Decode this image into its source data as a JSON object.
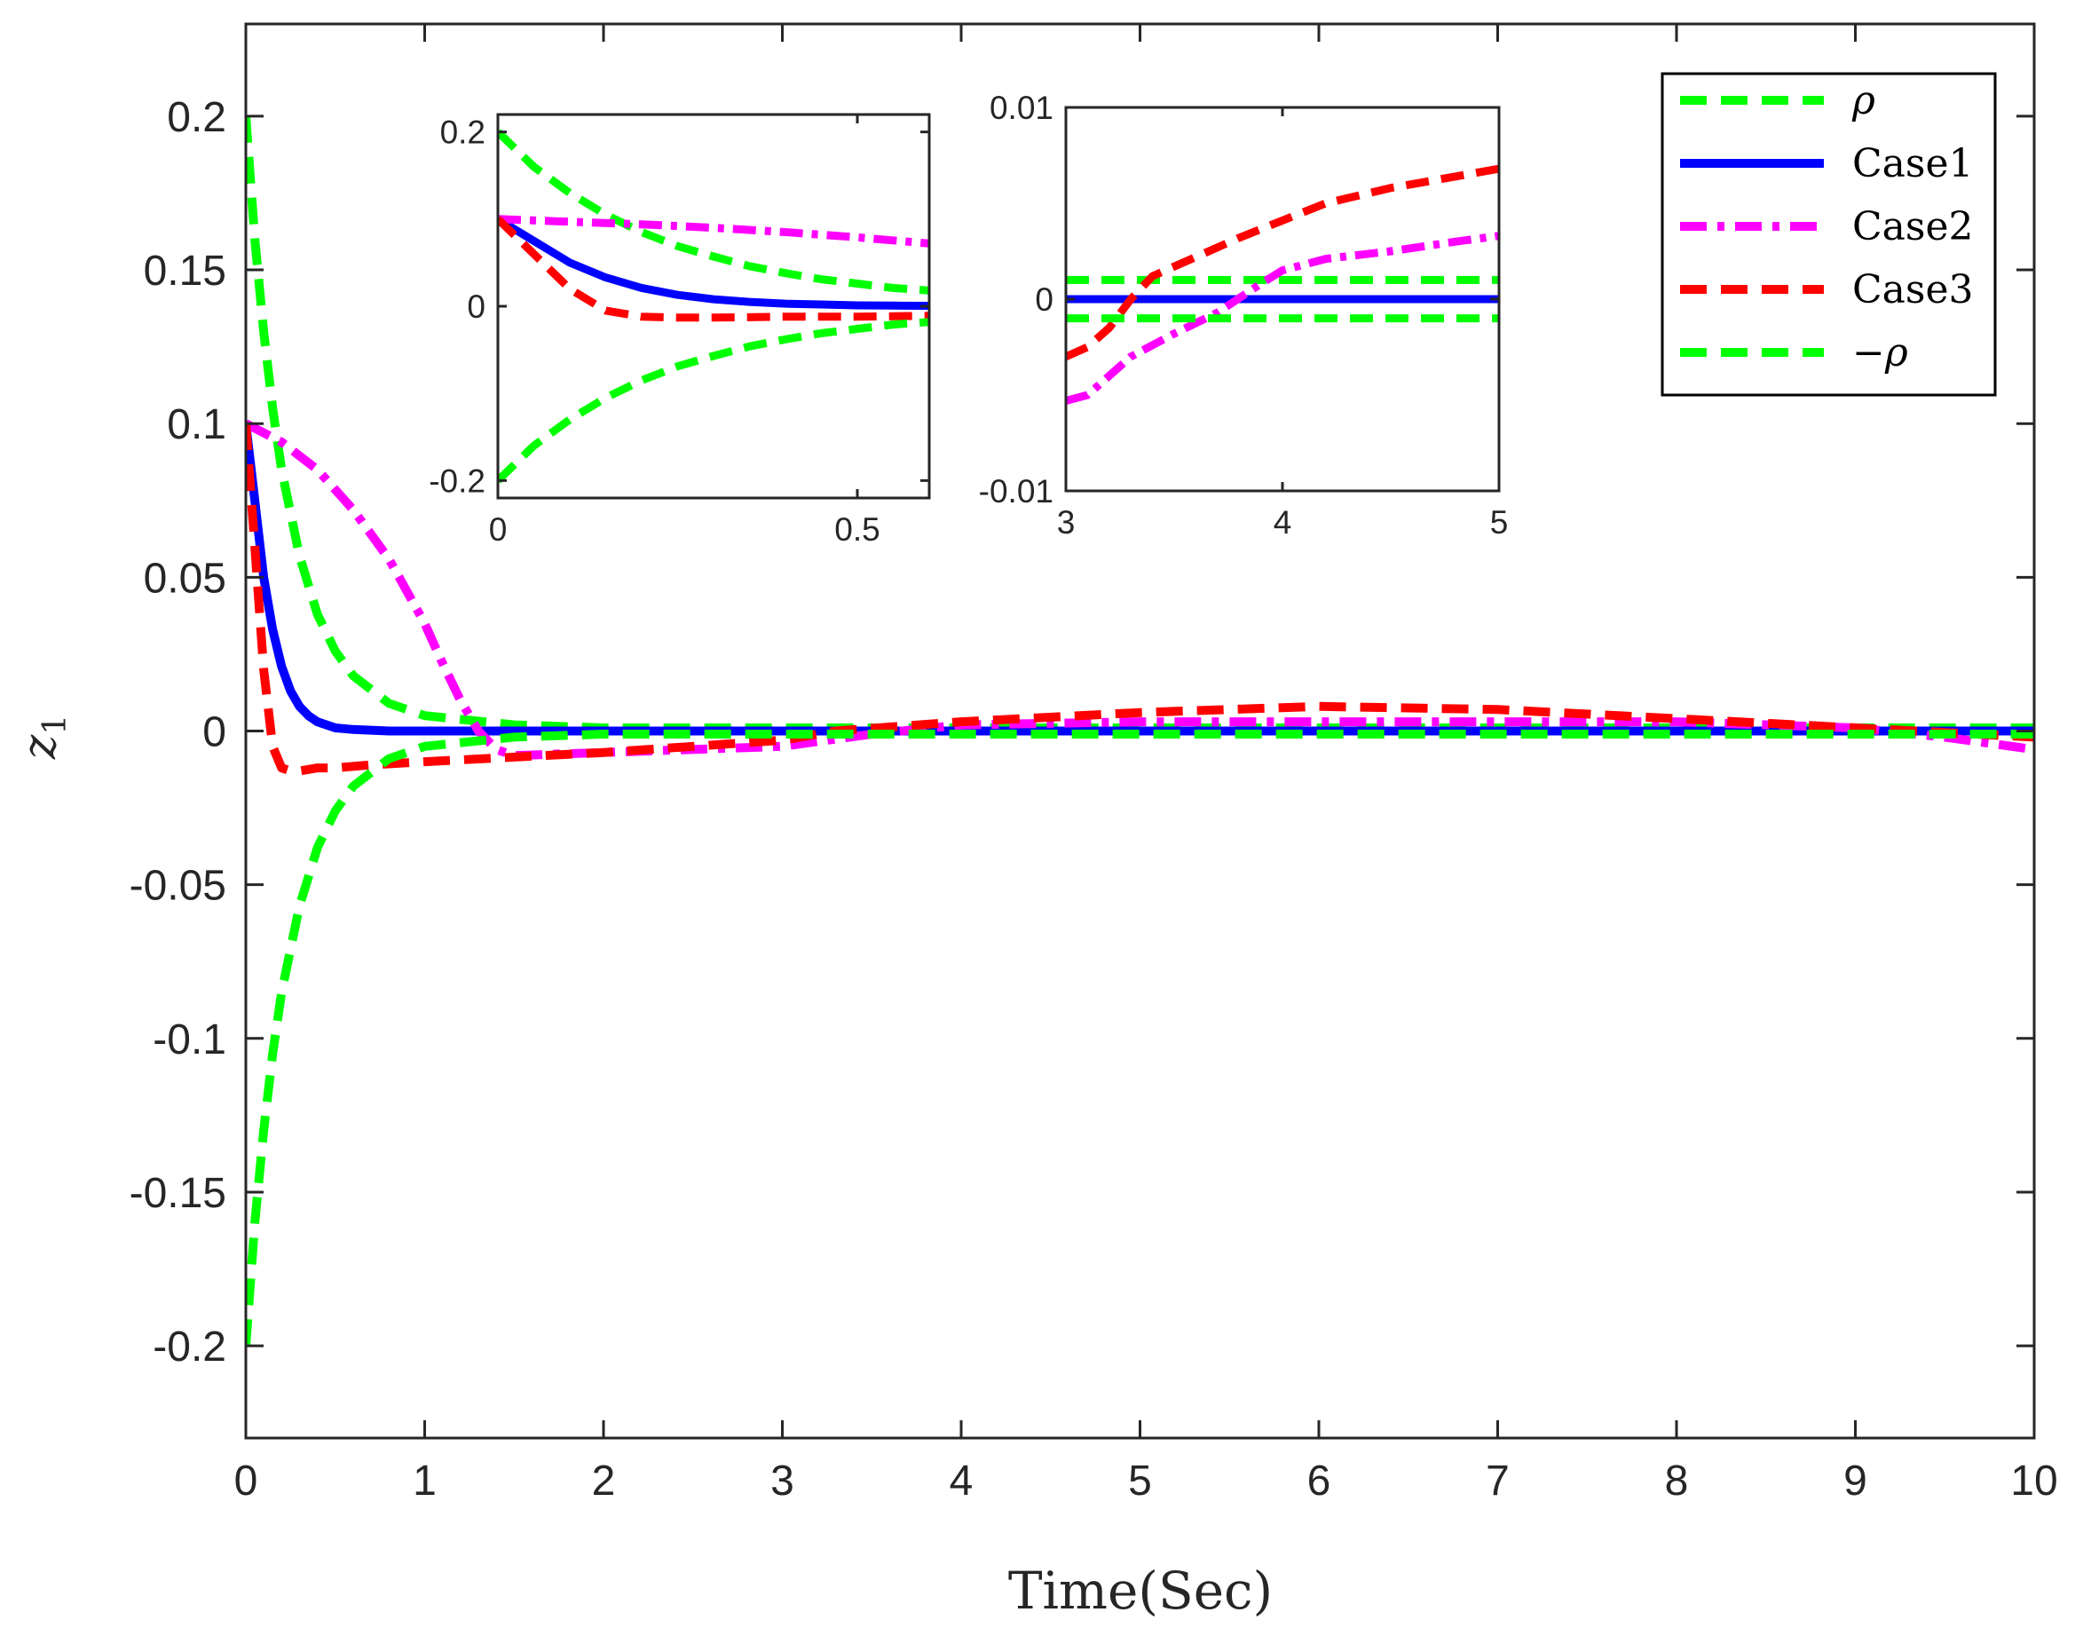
{
  "chart_data": [
    {
      "type": "line",
      "role": "main",
      "xlabel": "Time(Sec)",
      "ylabel": "z",
      "ylabel_subscript": "1",
      "xlim": [
        0,
        10
      ],
      "ylim": [
        -0.23,
        0.23
      ],
      "xticks": [
        0,
        1,
        2,
        3,
        4,
        5,
        6,
        7,
        8,
        9,
        10
      ],
      "xtick_labels": [
        "0",
        "1",
        "2",
        "3",
        "4",
        "5",
        "6",
        "7",
        "8",
        "9",
        "10"
      ],
      "yticks": [
        -0.2,
        -0.15,
        -0.1,
        -0.05,
        0,
        0.05,
        0.1,
        0.15,
        0.2
      ],
      "ytick_labels": [
        "-0.2",
        "-0.15",
        "-0.1",
        "-0.05",
        "0",
        "0.05",
        "0.1",
        "0.15",
        "0.2"
      ],
      "legend_position": "top-right",
      "series": [
        {
          "name": "ρ",
          "label_prefix": "",
          "label_symbol": "ρ",
          "color": "#00ff00",
          "style": "dashed",
          "x": [
            0,
            0.05,
            0.1,
            0.15,
            0.2,
            0.3,
            0.4,
            0.5,
            0.6,
            0.8,
            1.0,
            1.5,
            2,
            3,
            4,
            5,
            6,
            7,
            8,
            9,
            10
          ],
          "y": [
            0.2,
            0.16,
            0.13,
            0.105,
            0.085,
            0.057,
            0.038,
            0.026,
            0.018,
            0.009,
            0.005,
            0.002,
            0.001,
            0.001,
            0.001,
            0.001,
            0.001,
            0.001,
            0.001,
            0.001,
            0.001
          ]
        },
        {
          "name": "Case1",
          "label_prefix": "Case1",
          "label_symbol": "",
          "color": "#0000ff",
          "style": "solid",
          "x": [
            0,
            0.05,
            0.1,
            0.15,
            0.2,
            0.25,
            0.3,
            0.35,
            0.4,
            0.5,
            0.6,
            0.8,
            1,
            2,
            3,
            4,
            5,
            6,
            7,
            8,
            9,
            10
          ],
          "y": [
            0.1,
            0.075,
            0.05,
            0.033,
            0.021,
            0.013,
            0.008,
            0.005,
            0.003,
            0.001,
            0.0005,
            0,
            0,
            0,
            0,
            0,
            0,
            0,
            0,
            0,
            0,
            0
          ]
        },
        {
          "name": "Case2",
          "label_prefix": "Case2",
          "label_symbol": "",
          "color": "#ff00ff",
          "style": "dashdot",
          "x": [
            0,
            0.2,
            0.4,
            0.6,
            0.8,
            1.0,
            1.1,
            1.2,
            1.3,
            1.4,
            1.5,
            2,
            3,
            3.5,
            4,
            5,
            6,
            7,
            8,
            9,
            9.5,
            10
          ],
          "y": [
            0.1,
            0.094,
            0.085,
            0.072,
            0.056,
            0.035,
            0.022,
            0.01,
            0,
            -0.006,
            -0.008,
            -0.007,
            -0.005,
            -0.001,
            0.002,
            0.003,
            0.003,
            0.003,
            0.003,
            0.001,
            -0.002,
            -0.006
          ]
        },
        {
          "name": "Case3",
          "label_prefix": "Case3",
          "label_symbol": "",
          "color": "#ff0000",
          "style": "dashed",
          "x": [
            0,
            0.05,
            0.1,
            0.15,
            0.2,
            0.25,
            0.3,
            0.4,
            0.5,
            0.7,
            1,
            2,
            3,
            3.3,
            4,
            5,
            6,
            7,
            8,
            9,
            10
          ],
          "y": [
            0.1,
            0.06,
            0.02,
            -0.005,
            -0.012,
            -0.013,
            -0.013,
            -0.012,
            -0.012,
            -0.011,
            -0.01,
            -0.007,
            -0.003,
            0,
            0.003,
            0.006,
            0.008,
            0.007,
            0.004,
            0.001,
            -0.002
          ]
        },
        {
          "name": "-ρ",
          "label_prefix": "−",
          "label_symbol": "ρ",
          "color": "#00ff00",
          "style": "dashed",
          "x": [
            0,
            0.05,
            0.1,
            0.15,
            0.2,
            0.3,
            0.4,
            0.5,
            0.6,
            0.8,
            1.0,
            1.5,
            2,
            3,
            4,
            5,
            6,
            7,
            8,
            9,
            10
          ],
          "y": [
            -0.2,
            -0.16,
            -0.13,
            -0.105,
            -0.085,
            -0.057,
            -0.038,
            -0.026,
            -0.018,
            -0.009,
            -0.005,
            -0.002,
            -0.001,
            -0.001,
            -0.001,
            -0.001,
            -0.001,
            -0.001,
            -0.001,
            -0.001,
            -0.001
          ]
        }
      ]
    },
    {
      "type": "line",
      "role": "inset",
      "name": "inset-left",
      "xlim": [
        0,
        0.6
      ],
      "ylim": [
        -0.22,
        0.22
      ],
      "xticks": [
        0,
        0.5
      ],
      "xtick_labels": [
        "0",
        "0.5"
      ],
      "yticks": [
        -0.2,
        0,
        0.2
      ],
      "ytick_labels": [
        "-0.2",
        "0",
        "0.2"
      ],
      "series": [
        {
          "name": "ρ",
          "color": "#00ff00",
          "style": "dashed",
          "x": [
            0,
            0.05,
            0.1,
            0.15,
            0.2,
            0.25,
            0.3,
            0.35,
            0.4,
            0.45,
            0.5,
            0.55,
            0.6
          ],
          "y": [
            0.2,
            0.16,
            0.13,
            0.105,
            0.085,
            0.069,
            0.057,
            0.046,
            0.038,
            0.031,
            0.026,
            0.021,
            0.018
          ]
        },
        {
          "name": "Case1",
          "color": "#0000ff",
          "style": "solid",
          "x": [
            0,
            0.05,
            0.1,
            0.15,
            0.2,
            0.25,
            0.3,
            0.35,
            0.4,
            0.45,
            0.5,
            0.55,
            0.6
          ],
          "y": [
            0.1,
            0.075,
            0.05,
            0.033,
            0.021,
            0.013,
            0.008,
            0.005,
            0.003,
            0.002,
            0.001,
            0.0007,
            0.0005
          ]
        },
        {
          "name": "Case2",
          "color": "#ff00ff",
          "style": "dashdot",
          "x": [
            0,
            0.1,
            0.2,
            0.3,
            0.4,
            0.5,
            0.6
          ],
          "y": [
            0.1,
            0.097,
            0.094,
            0.09,
            0.085,
            0.079,
            0.072
          ]
        },
        {
          "name": "Case3",
          "color": "#ff0000",
          "style": "dashed",
          "x": [
            0,
            0.05,
            0.1,
            0.15,
            0.2,
            0.25,
            0.3,
            0.4,
            0.5,
            0.6
          ],
          "y": [
            0.1,
            0.06,
            0.02,
            -0.005,
            -0.012,
            -0.013,
            -0.013,
            -0.012,
            -0.012,
            -0.011
          ]
        },
        {
          "name": "-ρ",
          "color": "#00ff00",
          "style": "dashed",
          "x": [
            0,
            0.05,
            0.1,
            0.15,
            0.2,
            0.25,
            0.3,
            0.35,
            0.4,
            0.45,
            0.5,
            0.55,
            0.6
          ],
          "y": [
            -0.2,
            -0.16,
            -0.13,
            -0.105,
            -0.085,
            -0.069,
            -0.057,
            -0.046,
            -0.038,
            -0.031,
            -0.026,
            -0.021,
            -0.018
          ]
        }
      ]
    },
    {
      "type": "line",
      "role": "inset",
      "name": "inset-right",
      "xlim": [
        3,
        5
      ],
      "ylim": [
        -0.01,
        0.01
      ],
      "xticks": [
        3,
        4,
        5
      ],
      "xtick_labels": [
        "3",
        "4",
        "5"
      ],
      "yticks": [
        -0.01,
        0,
        0.01
      ],
      "ytick_labels": [
        "-0.01",
        "0",
        "0.01"
      ],
      "series": [
        {
          "name": "ρ",
          "color": "#00ff00",
          "style": "dashed",
          "x": [
            3,
            5
          ],
          "y": [
            0.001,
            0.001
          ]
        },
        {
          "name": "Case1",
          "color": "#0000ff",
          "style": "solid",
          "x": [
            3,
            5
          ],
          "y": [
            0,
            0
          ]
        },
        {
          "name": "Case2",
          "color": "#ff00ff",
          "style": "dashdot",
          "x": [
            3,
            3.1,
            3.2,
            3.3,
            3.5,
            3.7,
            3.9,
            4.0,
            4.2,
            4.5,
            4.8,
            5.0
          ],
          "y": [
            -0.0053,
            -0.005,
            -0.004,
            -0.003,
            -0.0018,
            -0.0007,
            0.0008,
            0.0015,
            0.0021,
            0.0025,
            0.003,
            0.0033
          ]
        },
        {
          "name": "Case3",
          "color": "#ff0000",
          "style": "dashed",
          "x": [
            3,
            3.1,
            3.2,
            3.3,
            3.4,
            3.6,
            3.8,
            4.0,
            4.2,
            4.5,
            4.8,
            5.0
          ],
          "y": [
            -0.003,
            -0.0025,
            -0.0015,
            0,
            0.0012,
            0.0022,
            0.0032,
            0.0041,
            0.005,
            0.0058,
            0.0064,
            0.0068
          ]
        },
        {
          "name": "-ρ",
          "color": "#00ff00",
          "style": "dashed",
          "x": [
            3,
            5
          ],
          "y": [
            -0.001,
            -0.001
          ]
        }
      ]
    }
  ]
}
